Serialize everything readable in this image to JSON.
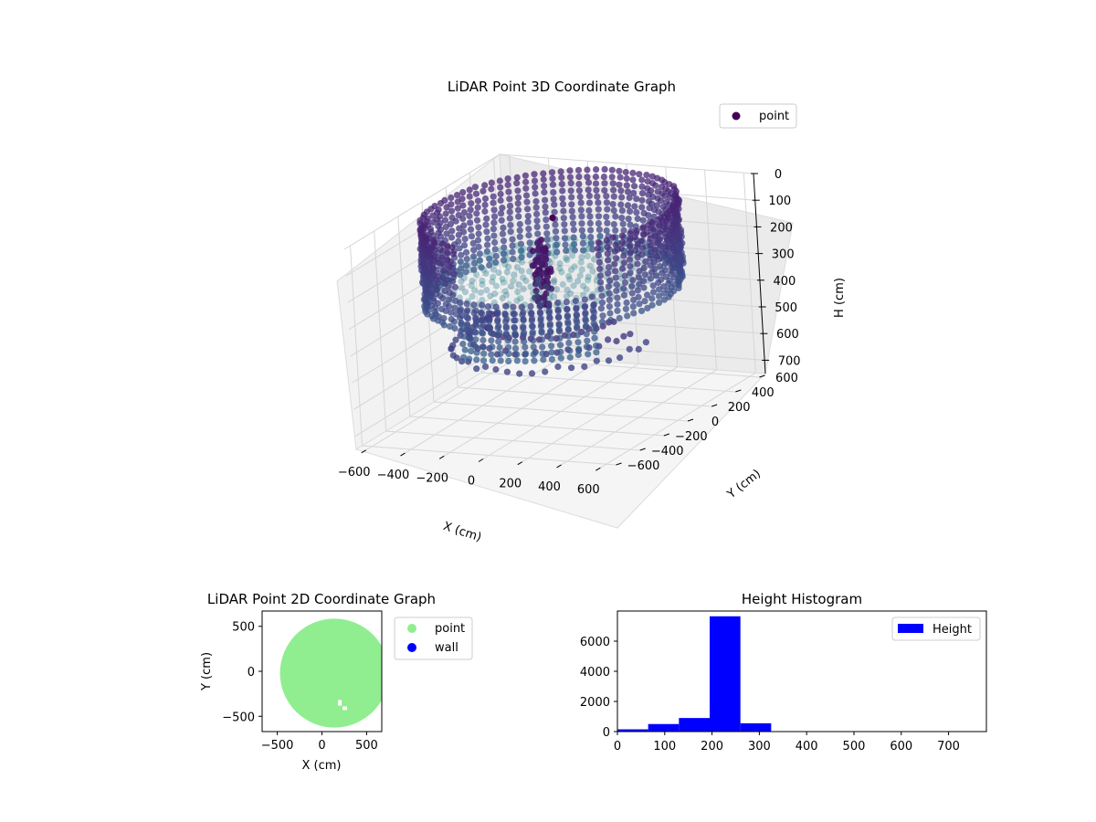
{
  "chart_data": [
    {
      "id": "chart3d",
      "type": "scatter",
      "title": "LiDAR Point 3D Coordinate Graph",
      "xlabel": "X (cm)",
      "ylabel": "Y (cm)",
      "zlabel": "H (cm)",
      "xticks": [
        -600,
        -400,
        -200,
        0,
        200,
        400,
        600
      ],
      "yticks": [
        -600,
        -400,
        -200,
        0,
        200,
        400,
        600
      ],
      "zticks": [
        0,
        100,
        200,
        300,
        400,
        500,
        600,
        700
      ],
      "xlim": [
        -650,
        650
      ],
      "ylim": [
        -650,
        650
      ],
      "zlim": [
        0,
        750
      ],
      "z_inverted": true,
      "colormap": "viridis",
      "legend": {
        "position": "top-right",
        "entries": [
          {
            "label": "point",
            "color": "#440154"
          }
        ]
      },
      "structure": {
        "outer_wall_radius": 560,
        "wall_height_range": [
          0,
          300
        ],
        "floor_height": 230,
        "central_object": {
          "x": -30,
          "y": -40,
          "height_range": [
            100,
            350
          ]
        }
      }
    },
    {
      "id": "chart2d",
      "type": "scatter",
      "title": "LiDAR Point 2D Coordinate Graph",
      "xlabel": "X (cm)",
      "ylabel": "Y (cm)",
      "xticks": [
        -500,
        0,
        500
      ],
      "yticks": [
        -500,
        0,
        500
      ],
      "xlim": [
        -670,
        670
      ],
      "ylim": [
        -670,
        670
      ],
      "series": [
        {
          "name": "point",
          "color": "#90ee90",
          "shape": "disc",
          "center": [
            140,
            -20
          ],
          "radius": 610
        },
        {
          "name": "wall",
          "color": "#0000ff"
        }
      ],
      "legend": {
        "position": "outside-right"
      }
    },
    {
      "id": "hist",
      "type": "bar",
      "title": "Height Histogram",
      "bin_edges": [
        0,
        65,
        130,
        195,
        260,
        325
      ],
      "values": [
        150,
        500,
        900,
        7650,
        550
      ],
      "xticks": [
        0,
        100,
        200,
        300,
        400,
        500,
        600,
        700
      ],
      "yticks": [
        0,
        2000,
        4000,
        6000
      ],
      "xlim": [
        0,
        780
      ],
      "ylim": [
        0,
        8000
      ],
      "color": "#0000ff",
      "legend": {
        "position": "top-right",
        "entries": [
          {
            "label": "Height",
            "color": "#0000ff"
          }
        ]
      }
    }
  ]
}
